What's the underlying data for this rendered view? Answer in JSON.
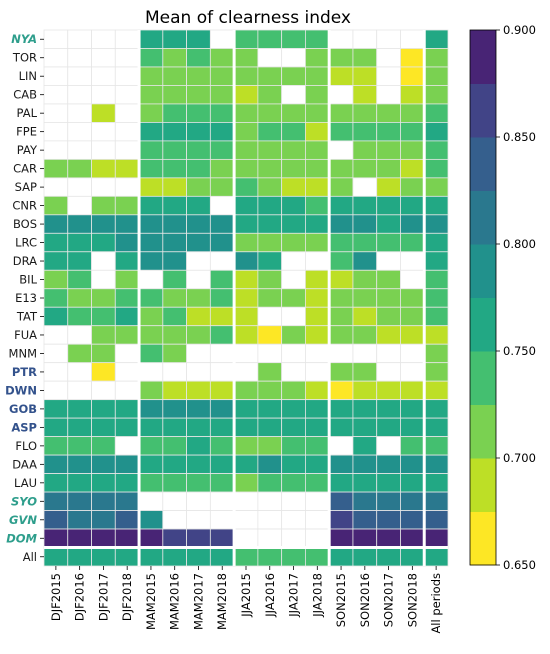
{
  "chart_data": {
    "type": "heatmap",
    "title": "Mean of clearness index",
    "xlabel": "",
    "ylabel": "",
    "columns": [
      "DJF2015",
      "DJF2016",
      "DJF2017",
      "DJF2018",
      "MAM2015",
      "MAM2016",
      "MAM2017",
      "MAM2018",
      "JJA2015",
      "JJA2016",
      "JJA2017",
      "JJA2018",
      "SON2015",
      "SON2016",
      "SON2017",
      "SON2018",
      "All periods"
    ],
    "rows": [
      {
        "label": "NYA",
        "style": "bold-italic",
        "color": "#2e9e8c",
        "values": [
          null,
          null,
          null,
          null,
          0.76,
          0.76,
          0.77,
          null,
          0.73,
          0.75,
          0.75,
          0.75,
          null,
          null,
          null,
          null,
          0.76
        ]
      },
      {
        "label": "TOR",
        "style": "normal",
        "color": "#1a1a1a",
        "values": [
          null,
          null,
          null,
          null,
          0.74,
          0.72,
          0.73,
          0.72,
          0.72,
          null,
          null,
          0.71,
          0.72,
          0.72,
          null,
          0.66,
          0.72
        ]
      },
      {
        "label": "LIN",
        "style": "normal",
        "color": "#1a1a1a",
        "values": [
          null,
          null,
          null,
          null,
          0.72,
          0.72,
          0.72,
          0.72,
          0.72,
          0.72,
          0.72,
          0.72,
          0.7,
          0.7,
          null,
          0.67,
          0.72
        ]
      },
      {
        "label": "CAB",
        "style": "normal",
        "color": "#1a1a1a",
        "values": [
          null,
          null,
          null,
          null,
          0.72,
          0.72,
          0.72,
          0.72,
          0.7,
          0.72,
          null,
          0.72,
          null,
          0.7,
          null,
          0.7,
          0.72
        ]
      },
      {
        "label": "PAL",
        "style": "normal",
        "color": "#1a1a1a",
        "values": [
          null,
          null,
          0.7,
          null,
          0.72,
          0.74,
          0.74,
          0.73,
          0.72,
          0.72,
          0.71,
          0.72,
          0.72,
          0.72,
          0.72,
          0.72,
          0.73
        ]
      },
      {
        "label": "FPE",
        "style": "normal",
        "color": "#1a1a1a",
        "values": [
          null,
          null,
          null,
          null,
          0.76,
          0.76,
          0.76,
          0.76,
          0.72,
          0.74,
          0.73,
          0.7,
          0.74,
          0.73,
          0.74,
          0.74,
          0.76
        ]
      },
      {
        "label": "PAY",
        "style": "normal",
        "color": "#1a1a1a",
        "values": [
          null,
          null,
          null,
          null,
          0.74,
          0.74,
          0.74,
          0.74,
          0.72,
          0.72,
          0.72,
          0.72,
          null,
          0.72,
          0.72,
          0.72,
          0.74
        ]
      },
      {
        "label": "CAR",
        "style": "normal",
        "color": "#1a1a1a",
        "values": [
          0.72,
          0.72,
          0.7,
          0.7,
          0.74,
          0.74,
          0.74,
          0.72,
          0.72,
          0.72,
          0.72,
          0.72,
          0.72,
          0.72,
          0.72,
          0.7,
          0.73
        ]
      },
      {
        "label": "SAP",
        "style": "normal",
        "color": "#1a1a1a",
        "values": [
          null,
          null,
          null,
          null,
          0.7,
          0.7,
          0.72,
          0.72,
          0.74,
          0.72,
          0.7,
          0.7,
          0.72,
          null,
          0.7,
          0.72,
          0.72
        ]
      },
      {
        "label": "CNR",
        "style": "normal",
        "color": "#1a1a1a",
        "values": [
          0.72,
          null,
          0.72,
          0.72,
          0.76,
          0.77,
          0.76,
          null,
          0.77,
          0.76,
          0.76,
          0.75,
          0.76,
          0.76,
          0.76,
          0.76,
          0.76
        ]
      },
      {
        "label": "BOS",
        "style": "normal",
        "color": "#1a1a1a",
        "values": [
          0.78,
          0.78,
          0.78,
          0.78,
          0.79,
          0.79,
          0.79,
          0.78,
          0.77,
          0.77,
          0.77,
          0.77,
          0.78,
          0.78,
          0.77,
          0.78,
          0.78
        ]
      },
      {
        "label": "LRC",
        "style": "normal",
        "color": "#1a1a1a",
        "values": [
          0.77,
          0.76,
          0.77,
          0.78,
          0.79,
          0.79,
          0.78,
          0.78,
          0.72,
          0.72,
          0.72,
          0.72,
          0.74,
          0.74,
          0.74,
          0.74,
          0.76
        ]
      },
      {
        "label": "DRA",
        "style": "normal",
        "color": "#1a1a1a",
        "values": [
          0.76,
          0.76,
          null,
          0.76,
          0.79,
          0.79,
          null,
          null,
          0.78,
          0.76,
          null,
          null,
          0.74,
          0.78,
          null,
          null,
          0.77
        ]
      },
      {
        "label": "BIL",
        "style": "normal",
        "color": "#1a1a1a",
        "values": [
          0.72,
          0.74,
          null,
          0.72,
          null,
          0.74,
          null,
          0.74,
          0.7,
          0.72,
          null,
          0.7,
          0.7,
          0.72,
          0.72,
          null,
          0.73
        ]
      },
      {
        "label": "E13",
        "style": "normal",
        "color": "#1a1a1a",
        "values": [
          0.74,
          0.72,
          0.72,
          0.74,
          0.74,
          0.72,
          0.72,
          0.74,
          0.7,
          0.72,
          0.72,
          0.7,
          0.72,
          0.72,
          0.72,
          0.72,
          0.73
        ]
      },
      {
        "label": "TAT",
        "style": "normal",
        "color": "#1a1a1a",
        "values": [
          0.76,
          0.74,
          0.74,
          0.76,
          0.72,
          0.74,
          0.7,
          0.7,
          0.7,
          null,
          null,
          0.7,
          0.72,
          0.7,
          0.72,
          0.72,
          0.73
        ]
      },
      {
        "label": "FUA",
        "style": "normal",
        "color": "#1a1a1a",
        "values": [
          null,
          null,
          0.72,
          0.72,
          0.72,
          0.72,
          0.72,
          0.74,
          0.7,
          0.66,
          0.72,
          0.7,
          0.72,
          0.72,
          0.7,
          0.7,
          0.7
        ]
      },
      {
        "label": "MNM",
        "style": "normal",
        "color": "#1a1a1a",
        "values": [
          null,
          0.72,
          0.72,
          null,
          0.74,
          0.72,
          null,
          null,
          null,
          null,
          null,
          null,
          null,
          null,
          null,
          null,
          0.72
        ]
      },
      {
        "label": "PTR",
        "style": "bold",
        "color": "#33528c",
        "values": [
          null,
          null,
          0.66,
          null,
          null,
          null,
          null,
          null,
          null,
          0.72,
          null,
          null,
          0.72,
          0.72,
          null,
          null,
          0.72
        ]
      },
      {
        "label": "DWN",
        "style": "bold",
        "color": "#33528c",
        "values": [
          null,
          null,
          null,
          null,
          0.72,
          0.7,
          0.7,
          0.7,
          0.72,
          0.72,
          0.72,
          0.7,
          0.66,
          0.7,
          0.7,
          0.7,
          0.7
        ]
      },
      {
        "label": "GOB",
        "style": "bold",
        "color": "#33528c",
        "values": [
          0.77,
          0.77,
          0.77,
          0.77,
          0.78,
          0.78,
          0.78,
          0.78,
          0.77,
          0.77,
          0.77,
          0.77,
          0.77,
          0.77,
          0.77,
          0.77,
          0.77
        ]
      },
      {
        "label": "ASP",
        "style": "bold",
        "color": "#33528c",
        "values": [
          0.76,
          0.76,
          0.76,
          0.76,
          0.76,
          0.76,
          0.76,
          0.76,
          0.76,
          0.76,
          0.76,
          0.77,
          0.76,
          0.76,
          0.76,
          0.76,
          0.76
        ]
      },
      {
        "label": "FLO",
        "style": "normal",
        "color": "#1a1a1a",
        "values": [
          0.74,
          0.74,
          0.74,
          null,
          0.74,
          0.74,
          0.76,
          0.74,
          0.72,
          0.72,
          0.74,
          0.74,
          null,
          0.76,
          null,
          0.74,
          0.74
        ]
      },
      {
        "label": "DAA",
        "style": "normal",
        "color": "#1a1a1a",
        "values": [
          0.78,
          0.78,
          0.78,
          0.78,
          0.77,
          0.77,
          0.77,
          0.77,
          0.77,
          0.78,
          0.77,
          0.77,
          0.78,
          0.78,
          0.78,
          0.78,
          0.78
        ]
      },
      {
        "label": "LAU",
        "style": "normal",
        "color": "#1a1a1a",
        "values": [
          0.76,
          0.76,
          0.76,
          0.76,
          0.74,
          0.74,
          0.74,
          0.74,
          0.72,
          0.74,
          0.74,
          0.74,
          0.76,
          0.76,
          0.76,
          0.76,
          0.76
        ]
      },
      {
        "label": "SYO",
        "style": "bold-italic",
        "color": "#2e9e8c",
        "values": [
          0.82,
          0.82,
          0.8,
          0.82,
          null,
          null,
          null,
          null,
          null,
          null,
          null,
          null,
          0.84,
          0.82,
          0.82,
          0.82,
          0.82
        ]
      },
      {
        "label": "GVN",
        "style": "bold-italic",
        "color": "#2e9e8c",
        "values": [
          0.83,
          0.82,
          0.81,
          0.83,
          0.78,
          null,
          null,
          null,
          null,
          null,
          null,
          null,
          0.86,
          0.84,
          0.84,
          0.84,
          0.83
        ]
      },
      {
        "label": "DOM",
        "style": "bold-italic",
        "color": "#2e9e8c",
        "values": [
          0.89,
          0.89,
          0.89,
          0.89,
          0.89,
          0.86,
          0.87,
          0.87,
          null,
          null,
          null,
          null,
          0.89,
          0.89,
          0.89,
          0.89,
          0.89
        ]
      },
      {
        "label": "All",
        "style": "normal",
        "color": "#1a1a1a",
        "values": [
          0.77,
          0.77,
          0.76,
          0.76,
          0.76,
          0.76,
          0.76,
          0.76,
          0.74,
          0.74,
          0.74,
          0.74,
          0.76,
          0.76,
          0.76,
          0.76,
          0.76
        ]
      }
    ],
    "colorbar": {
      "min": 0.65,
      "max": 0.9,
      "step": 0.025,
      "ticks": [
        "0.900",
        "0.850",
        "0.800",
        "0.750",
        "0.700",
        "0.650"
      ],
      "colors": [
        "#fde725",
        "#bddf26",
        "#7ad151",
        "#44bf70",
        "#22a884",
        "#21918c",
        "#2a788e",
        "#355f8d",
        "#414487",
        "#482475"
      ]
    },
    "grid": true,
    "missing_color": "#ffffff"
  }
}
